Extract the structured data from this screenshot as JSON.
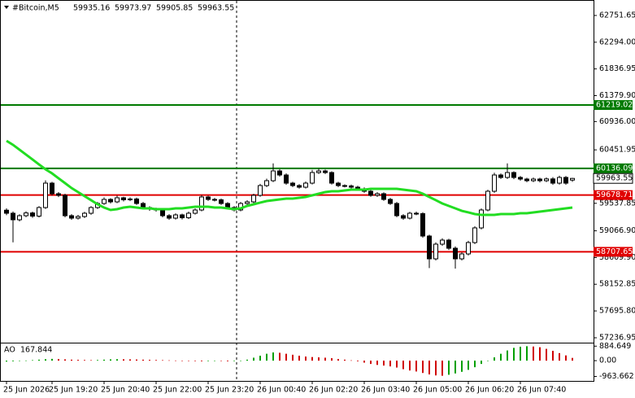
{
  "chart_data": {
    "type": "candlestick",
    "title": "#Bitcoin,M5",
    "categories": [
      "25 Jun 2026",
      null,
      null,
      null,
      null,
      null,
      null,
      "25 Jun 19:20",
      null,
      null,
      null,
      null,
      null,
      null,
      null,
      "25 Jun 20:40",
      null,
      null,
      null,
      null,
      null,
      null,
      null,
      "25 Jun 22:00",
      null,
      null,
      null,
      null,
      null,
      null,
      null,
      "25 Jun 23:20",
      null,
      null,
      null,
      null,
      null,
      null,
      null,
      "26 Jun 00:40",
      null,
      null,
      null,
      null,
      null,
      null,
      null,
      "26 Jun 02:20",
      null,
      null,
      null,
      null,
      null,
      null,
      null,
      "26 Jun 03:40",
      null,
      null,
      null,
      null,
      null,
      null,
      null,
      "26 Jun 05:00",
      null,
      null,
      null,
      null,
      null,
      null,
      null,
      "26 Jun 06:20",
      null,
      null,
      null,
      null,
      null,
      null,
      null,
      "26 Jun 07:40",
      null,
      null,
      null,
      null,
      null,
      null,
      null,
      null
    ],
    "open": [
      59420.0,
      59367.6,
      59256.2,
      59325.8,
      59372.4,
      59318.5,
      59465.1,
      59882.8,
      59701.8,
      59674.0,
      59325.8,
      59284.0,
      59311.9,
      59367.6,
      59465.1,
      59534.7,
      59604.3,
      59562.6,
      59632.2,
      59598.1,
      59611.7,
      59534.7,
      59465.1,
      59437.2,
      59423.3,
      59325.8,
      59284.0,
      59339.7,
      59290.4,
      59367.6,
      59423.3,
      59646.1,
      59604.3,
      59597.0,
      59534.7,
      59465.1,
      59423.3,
      59534.7,
      59562.6,
      59674.0,
      59841.1,
      59924.6,
      60091.7,
      60022.1,
      59882.8,
      59841.1,
      59813.2,
      59882.8,
      60063.9,
      60091.7,
      60063.9,
      59882.8,
      59841.1,
      59835.0,
      59813.2,
      59785.4,
      59743.6,
      59674.0,
      59701.8,
      59604.3,
      59534.7,
      59325.8,
      59284.0,
      59367.6,
      59360.2,
      58977.7,
      58587.7,
      58838.4,
      58908.0,
      58768.8,
      58587.7,
      58671.3,
      58866.3,
      59116.9,
      59423.3,
      59743.6,
      60022.1,
      59980.3,
      60063.9,
      59980.3,
      59952.5,
      59924.6,
      59952.5,
      59924.6,
      59955.1,
      59882.8,
      59980.3,
      59935.16
    ],
    "high": [
      59452,
      59398,
      59350,
      59401,
      59395,
      59490,
      59930,
      59905,
      59730,
      59700,
      59352,
      59340,
      59392,
      59490,
      59560,
      59640,
      59625,
      59668,
      59650,
      59640,
      59635,
      59560,
      59488,
      59462,
      59445,
      59352,
      59365,
      59360,
      59395,
      59450,
      59680,
      59668,
      59630,
      59620,
      59558,
      59490,
      59560,
      59590,
      59700,
      59870,
      59960,
      60220,
      60120,
      60050,
      59905,
      59865,
      59910,
      60110,
      60130,
      60115,
      60085,
      59905,
      59862,
      59858,
      59838,
      59810,
      59765,
      59728,
      59725,
      59630,
      59560,
      59352,
      59392,
      59395,
      59385,
      59000,
      58870,
      58940,
      58930,
      58800,
      58700,
      58895,
      59145,
      59450,
      59770,
      60060,
      60048,
      60220,
      60085,
      60005,
      59975,
      59978,
      59975,
      59980,
      59985,
      60010,
      60005,
      59973.97
    ],
    "low": [
      59335,
      58870,
      59228,
      59300,
      59290,
      59295,
      59440,
      59670,
      59645,
      59298,
      59255,
      59260,
      59285,
      59342,
      59440,
      59510,
      59535,
      59540,
      59570,
      59575,
      59510,
      59440,
      59410,
      59395,
      59298,
      59255,
      59260,
      59262,
      59268,
      59345,
      59400,
      59578,
      59570,
      59510,
      59440,
      59398,
      59400,
      59510,
      59540,
      59650,
      59815,
      59900,
      59995,
      59855,
      59815,
      59788,
      59790,
      59860,
      60040,
      60038,
      59858,
      59815,
      59810,
      59790,
      59760,
      59718,
      59650,
      59648,
      59580,
      59510,
      59300,
      59255,
      59262,
      59335,
      58950,
      58430,
      58560,
      58810,
      58740,
      58420,
      58560,
      58645,
      58840,
      59090,
      59400,
      59718,
      59955,
      59955,
      59950,
      59925,
      59898,
      59900,
      59895,
      59900,
      59855,
      59858,
      59855,
      59905.85
    ],
    "close": [
      59367.6,
      59256.2,
      59325.8,
      59372.4,
      59318.5,
      59465.1,
      59882.8,
      59701.8,
      59674.0,
      59325.8,
      59284.0,
      59311.9,
      59367.6,
      59465.1,
      59534.7,
      59604.3,
      59562.6,
      59632.2,
      59598.1,
      59611.7,
      59534.7,
      59465.1,
      59437.2,
      59423.3,
      59325.8,
      59284.0,
      59339.7,
      59290.4,
      59367.6,
      59423.3,
      59646.1,
      59604.3,
      59597.0,
      59534.7,
      59465.1,
      59423.3,
      59534.7,
      59562.6,
      59674.0,
      59841.1,
      59924.6,
      60091.7,
      60022.1,
      59882.8,
      59841.1,
      59813.2,
      59882.8,
      60063.9,
      60091.7,
      60063.9,
      59882.8,
      59841.1,
      59835.0,
      59813.2,
      59785.4,
      59743.6,
      59674.0,
      59701.8,
      59604.3,
      59534.7,
      59325.8,
      59284.0,
      59367.6,
      59360.2,
      58977.7,
      58587.7,
      58838.4,
      58908.0,
      58768.8,
      58587.7,
      58671.3,
      58866.3,
      59116.9,
      59423.3,
      59743.6,
      60022.1,
      59980.3,
      60063.9,
      59980.3,
      59952.5,
      59924.6,
      59952.5,
      59924.6,
      59955.1,
      59882.8,
      59980.3,
      59882.8,
      59963.55
    ],
    "up_color": "#ffffff",
    "down_color": "#000000",
    "ylim": [
      57167.3,
      63016.2
    ],
    "yticks": [
      62751.65,
      {
        "value": 62294.0,
        "label": "62294.00"
      },
      61836.95,
      {
        "value": 61379.9,
        "label": "61379.90"
      },
      {
        "value": 60936.0,
        "label": "60936.00"
      },
      60451.95,
      59537.85,
      {
        "value": 59066.9,
        "label": "59066.90"
      },
      {
        "value": 58609.9,
        "label": "58609.90"
      },
      58152.85,
      {
        "value": 57695.8,
        "label": "57695.80"
      },
      57236.95
    ],
    "levels": [
      {
        "value": 61219.02,
        "color": "#007a00"
      },
      {
        "value": 60136.09,
        "color": "#007a00"
      },
      {
        "value": 59678.71,
        "color": "#e00000"
      },
      {
        "value": 58707.65,
        "color": "#e00000"
      }
    ],
    "ma": {
      "color": "#22dd22",
      "values": [
        60607,
        60538,
        60454,
        60371,
        60287,
        60203,
        60120,
        60050,
        59966,
        59883,
        59799,
        59730,
        59660,
        59591,
        59521,
        59465,
        59423,
        59437,
        59465,
        59479,
        59465,
        59451,
        59451,
        59437,
        59437,
        59437,
        59451,
        59451,
        59465,
        59479,
        59479,
        59479,
        59465,
        59465,
        59451,
        59437,
        59451,
        59493,
        59521,
        59549,
        59576,
        59591,
        59604,
        59618,
        59618,
        59632,
        59646,
        59674,
        59702,
        59730,
        59744,
        59744,
        59758,
        59772,
        59772,
        59772,
        59786,
        59786,
        59786,
        59786,
        59786,
        59772,
        59758,
        59744,
        59702,
        59646,
        59591,
        59535,
        59493,
        59451,
        59409,
        59382,
        59354,
        59340,
        59340,
        59340,
        59354,
        59354,
        59354,
        59368,
        59368,
        59382,
        59396,
        59409,
        59423,
        59437,
        59451,
        59465
      ]
    },
    "ao": {
      "label": "AO",
      "up_color": "#00a000",
      "down_color": "#d00000",
      "ylim": [
        -1235.5,
        1047.7
      ],
      "yticks": [
        884.649,
        {
          "value": 0,
          "label": "0.00"
        },
        -963.662
      ],
      "values": [
        -60,
        -40,
        -20,
        10,
        30,
        60,
        90,
        110,
        100,
        80,
        60,
        50,
        40,
        30,
        40,
        60,
        80,
        90,
        85,
        80,
        70,
        60,
        50,
        40,
        30,
        20,
        10,
        0,
        -20,
        -30,
        -40,
        -30,
        -10,
        -20,
        -40,
        -30,
        -10,
        60,
        180,
        300,
        420,
        500,
        480,
        420,
        360,
        300,
        250,
        220,
        200,
        180,
        150,
        100,
        60,
        20,
        -40,
        -120,
        -200,
        -260,
        -300,
        -350,
        -420,
        -520,
        -600,
        -660,
        -750,
        -840,
        -900,
        -920,
        -860,
        -780,
        -680,
        -560,
        -400,
        -200,
        0,
        200,
        420,
        620,
        780,
        850,
        880,
        860,
        820,
        720,
        600,
        460,
        320,
        167.844
      ]
    }
  }
}
